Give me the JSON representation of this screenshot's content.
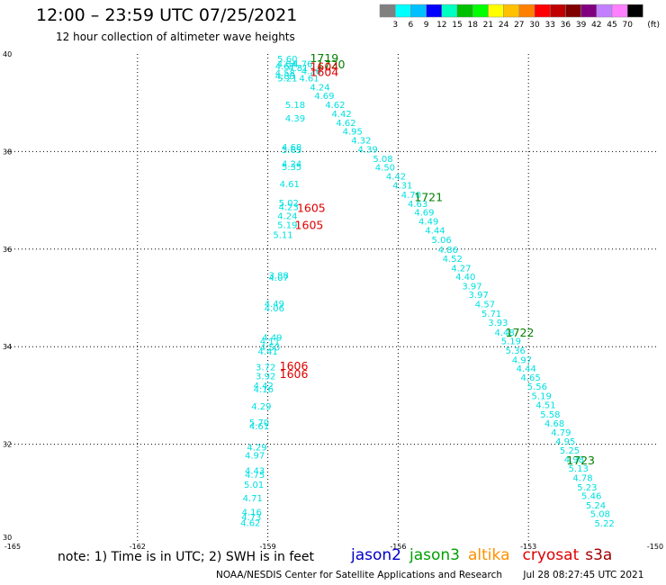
{
  "header": {
    "title": "12:00 – 23:59 UTC 07/25/2021",
    "subtitle": "12 hour collection of altimeter wave heights"
  },
  "colorbar": {
    "colors": [
      "#808080",
      "#00ffff",
      "#00c0ff",
      "#0000ff",
      "#00ffc0",
      "#00c000",
      "#00ff00",
      "#ffff00",
      "#ffc000",
      "#ff8000",
      "#ff0000",
      "#c00000",
      "#800000",
      "#800080",
      "#c080ff",
      "#ff80ff",
      "#000000"
    ],
    "labels": [
      "3",
      "6",
      "9",
      "12",
      "15",
      "18",
      "21",
      "24",
      "27",
      "30",
      "33",
      "36",
      "39",
      "42",
      "45",
      "70"
    ],
    "unit": "(ft)"
  },
  "footer": {
    "note": "note: 1) Time is in UTC; 2) SWH is in feet",
    "satellites": [
      {
        "name": "jason2",
        "color": "#0000c8"
      },
      {
        "name": "jason3",
        "color": "#00a000"
      },
      {
        "name": "altika",
        "color": "#ff9000"
      },
      {
        "name": "cryosat",
        "color": "#e00000"
      },
      {
        "name": "s3a",
        "color": "#a00000"
      }
    ],
    "credit": "NOAA/NESDIS Center for Satellite Applications and Research",
    "timestamp": "Jul 28 08:27:45 UTC 2021"
  },
  "chart_data": {
    "type": "scatter",
    "x_ticks": [
      "-165",
      "-162",
      "-159",
      "-156",
      "-153",
      "-150"
    ],
    "y_ticks": [
      "40",
      "38",
      "36",
      "34",
      "32",
      "30"
    ],
    "xlim": [
      -165,
      -150
    ],
    "ylim": [
      30,
      40
    ],
    "grid": true,
    "point_color": "#00e0e0",
    "points": [
      {
        "x": -158.55,
        "y": 39.91,
        "v": "5.60"
      },
      {
        "x": -158.56,
        "y": 39.81,
        "v": "4.84"
      },
      {
        "x": -158.2,
        "y": 39.81,
        "v": "4.76"
      },
      {
        "x": -158.6,
        "y": 39.76,
        "v": "4.67"
      },
      {
        "x": -158.3,
        "y": 39.72,
        "v": "4.81"
      },
      {
        "x": -158.0,
        "y": 39.66,
        "v": "4.26"
      },
      {
        "x": -158.6,
        "y": 39.62,
        "v": "4.58"
      },
      {
        "x": -158.6,
        "y": 39.56,
        "v": "4.85"
      },
      {
        "x": -158.55,
        "y": 39.51,
        "v": "5.21"
      },
      {
        "x": -158.05,
        "y": 39.51,
        "v": "4.61"
      },
      {
        "x": -157.8,
        "y": 39.33,
        "v": "4.24"
      },
      {
        "x": -157.7,
        "y": 39.15,
        "v": "4.69"
      },
      {
        "x": -158.37,
        "y": 38.97,
        "v": "5.18"
      },
      {
        "x": -157.45,
        "y": 38.97,
        "v": "4.62"
      },
      {
        "x": -157.3,
        "y": 38.78,
        "v": "4.42"
      },
      {
        "x": -158.37,
        "y": 38.69,
        "v": "4.39"
      },
      {
        "x": -157.2,
        "y": 38.6,
        "v": "4.62"
      },
      {
        "x": -157.05,
        "y": 38.42,
        "v": "4.95"
      },
      {
        "x": -156.85,
        "y": 38.24,
        "v": "4.32"
      },
      {
        "x": -158.45,
        "y": 38.1,
        "v": "4.68"
      },
      {
        "x": -158.45,
        "y": 38.04,
        "v": "5.65"
      },
      {
        "x": -156.7,
        "y": 38.05,
        "v": "4.39"
      },
      {
        "x": -156.35,
        "y": 37.86,
        "v": "5.08"
      },
      {
        "x": -158.45,
        "y": 37.76,
        "v": "4.24"
      },
      {
        "x": -158.45,
        "y": 37.69,
        "v": "5.35"
      },
      {
        "x": -156.3,
        "y": 37.68,
        "v": "4.50"
      },
      {
        "x": -156.05,
        "y": 37.5,
        "v": "4.42"
      },
      {
        "x": -158.5,
        "y": 37.34,
        "v": "4.61"
      },
      {
        "x": -155.9,
        "y": 37.32,
        "v": "4.31"
      },
      {
        "x": -155.7,
        "y": 37.12,
        "v": "4.70"
      },
      {
        "x": -158.52,
        "y": 36.96,
        "v": "5.02"
      },
      {
        "x": -158.52,
        "y": 36.87,
        "v": "4.23"
      },
      {
        "x": -155.55,
        "y": 36.94,
        "v": "4.63"
      },
      {
        "x": -158.55,
        "y": 36.69,
        "v": "4.24"
      },
      {
        "x": -155.4,
        "y": 36.76,
        "v": "4.69"
      },
      {
        "x": -158.55,
        "y": 36.5,
        "v": "5.19"
      },
      {
        "x": -155.3,
        "y": 36.58,
        "v": "4.49"
      },
      {
        "x": -155.15,
        "y": 36.39,
        "v": "4.44"
      },
      {
        "x": -158.65,
        "y": 36.3,
        "v": "5.11"
      },
      {
        "x": -155.0,
        "y": 36.2,
        "v": "5.06"
      },
      {
        "x": -154.85,
        "y": 36.0,
        "v": "4.86"
      },
      {
        "x": -154.75,
        "y": 35.81,
        "v": "4.52"
      },
      {
        "x": -154.55,
        "y": 35.62,
        "v": "4.27"
      },
      {
        "x": -158.75,
        "y": 35.47,
        "v": "3.88"
      },
      {
        "x": -158.75,
        "y": 35.42,
        "v": "4.07"
      },
      {
        "x": -154.45,
        "y": 35.44,
        "v": "4.40"
      },
      {
        "x": -154.3,
        "y": 35.25,
        "v": "3.97"
      },
      {
        "x": -154.15,
        "y": 35.07,
        "v": "3.97"
      },
      {
        "x": -158.85,
        "y": 34.89,
        "v": "4.49"
      },
      {
        "x": -158.85,
        "y": 34.8,
        "v": "4.06"
      },
      {
        "x": -154.0,
        "y": 34.88,
        "v": "4.57"
      },
      {
        "x": -153.85,
        "y": 34.69,
        "v": "5.71"
      },
      {
        "x": -153.7,
        "y": 34.5,
        "v": "3.93"
      },
      {
        "x": -158.9,
        "y": 34.2,
        "v": "4.49"
      },
      {
        "x": -158.95,
        "y": 34.12,
        "v": "4.11"
      },
      {
        "x": -153.55,
        "y": 34.3,
        "v": "4.48"
      },
      {
        "x": -158.95,
        "y": 33.99,
        "v": "4.50"
      },
      {
        "x": -153.4,
        "y": 34.12,
        "v": "5.19"
      },
      {
        "x": -159.0,
        "y": 33.91,
        "v": "4.41"
      },
      {
        "x": -153.3,
        "y": 33.93,
        "v": "5.36"
      },
      {
        "x": -153.15,
        "y": 33.74,
        "v": "4.97"
      },
      {
        "x": -159.05,
        "y": 33.59,
        "v": "3.72"
      },
      {
        "x": -153.05,
        "y": 33.56,
        "v": "4.44"
      },
      {
        "x": -159.05,
        "y": 33.4,
        "v": "3.92"
      },
      {
        "x": -152.95,
        "y": 33.38,
        "v": "4.65"
      },
      {
        "x": -159.1,
        "y": 33.21,
        "v": "4.42"
      },
      {
        "x": -159.1,
        "y": 33.14,
        "v": "4.16"
      },
      {
        "x": -152.8,
        "y": 33.19,
        "v": "5.56"
      },
      {
        "x": -152.7,
        "y": 33.0,
        "v": "5.19"
      },
      {
        "x": -159.15,
        "y": 32.79,
        "v": "4.29"
      },
      {
        "x": -152.6,
        "y": 32.81,
        "v": "4.51"
      },
      {
        "x": -152.5,
        "y": 32.62,
        "v": "5.58"
      },
      {
        "x": -159.2,
        "y": 32.45,
        "v": "5.70"
      },
      {
        "x": -159.2,
        "y": 32.38,
        "v": "4.61"
      },
      {
        "x": -152.4,
        "y": 32.44,
        "v": "4.68"
      },
      {
        "x": -152.25,
        "y": 32.25,
        "v": "4.79"
      },
      {
        "x": -152.15,
        "y": 32.07,
        "v": "4.95"
      },
      {
        "x": -159.25,
        "y": 31.95,
        "v": "4.29"
      },
      {
        "x": -152.05,
        "y": 31.88,
        "v": "5.25"
      },
      {
        "x": -159.3,
        "y": 31.78,
        "v": "4.97"
      },
      {
        "x": -151.95,
        "y": 31.7,
        "v": "4.98"
      },
      {
        "x": -151.85,
        "y": 31.51,
        "v": "5.13"
      },
      {
        "x": -159.3,
        "y": 31.47,
        "v": "4.43"
      },
      {
        "x": -159.3,
        "y": 31.38,
        "v": "4.75"
      },
      {
        "x": -151.75,
        "y": 31.32,
        "v": "4.78"
      },
      {
        "x": -159.32,
        "y": 31.18,
        "v": "5.01"
      },
      {
        "x": -151.65,
        "y": 31.13,
        "v": "5.23"
      },
      {
        "x": -151.55,
        "y": 30.95,
        "v": "5.46"
      },
      {
        "x": -159.35,
        "y": 30.9,
        "v": "4.71"
      },
      {
        "x": -151.45,
        "y": 30.76,
        "v": "5.24"
      },
      {
        "x": -159.37,
        "y": 30.62,
        "v": "4.16"
      },
      {
        "x": -151.35,
        "y": 30.58,
        "v": "5.08"
      },
      {
        "x": -159.38,
        "y": 30.52,
        "v": "4.73"
      },
      {
        "x": -151.25,
        "y": 30.39,
        "v": "5.22"
      },
      {
        "x": -159.4,
        "y": 30.4,
        "v": "4.62"
      }
    ],
    "time_labels": [
      {
        "x": -157.7,
        "y": 39.93,
        "text": "1719",
        "color": "#008000"
      },
      {
        "x": -157.55,
        "y": 39.8,
        "text": "1720",
        "color": "#008000"
      },
      {
        "x": -157.7,
        "y": 39.75,
        "text": "1604",
        "color": "#e00000"
      },
      {
        "x": -157.7,
        "y": 39.64,
        "text": "1604",
        "color": "#e00000"
      },
      {
        "x": -155.3,
        "y": 37.08,
        "text": "1721",
        "color": "#008000"
      },
      {
        "x": -158.0,
        "y": 36.85,
        "text": "1605",
        "color": "#e00000"
      },
      {
        "x": -158.05,
        "y": 36.5,
        "text": "1605",
        "color": "#e00000"
      },
      {
        "x": -153.2,
        "y": 34.3,
        "text": "1722",
        "color": "#008000"
      },
      {
        "x": -158.4,
        "y": 33.62,
        "text": "1606",
        "color": "#e00000"
      },
      {
        "x": -158.4,
        "y": 33.45,
        "text": "1606",
        "color": "#e00000"
      },
      {
        "x": -151.8,
        "y": 31.68,
        "text": "1723",
        "color": "#008000"
      }
    ]
  }
}
